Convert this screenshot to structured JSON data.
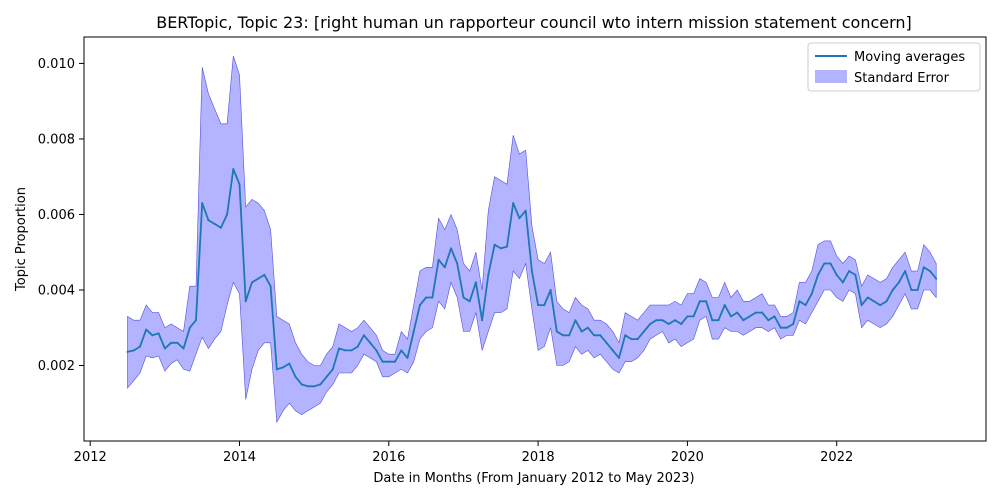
{
  "chart_data": {
    "type": "line",
    "title": "BERTopic, Topic 23: [right human un rapporteur council wto intern mission statement concern]",
    "xlabel": "Date in Months (From January 2012 to May 2023)",
    "ylabel": "Topic Proportion",
    "xlim": [
      "2011-12",
      "2024-01"
    ],
    "ylim": [
      0.0,
      0.0107
    ],
    "x_ticks": [
      "2012",
      "2014",
      "2016",
      "2018",
      "2020",
      "2022"
    ],
    "y_ticks": [
      "0.002",
      "0.004",
      "0.006",
      "0.008",
      "0.010"
    ],
    "legend_position": "top-right",
    "grid": false,
    "colors": {
      "line": "#1f77b4",
      "band": "#8080ff",
      "band_edge": "#5050dd"
    },
    "x": [
      "2012-07",
      "2012-08",
      "2012-09",
      "2012-10",
      "2012-11",
      "2012-12",
      "2013-01",
      "2013-02",
      "2013-03",
      "2013-04",
      "2013-05",
      "2013-06",
      "2013-07",
      "2013-08",
      "2013-09",
      "2013-10",
      "2013-11",
      "2013-12",
      "2014-01",
      "2014-02",
      "2014-03",
      "2014-04",
      "2014-05",
      "2014-06",
      "2014-07",
      "2014-08",
      "2014-09",
      "2014-10",
      "2014-11",
      "2014-12",
      "2015-01",
      "2015-02",
      "2015-03",
      "2015-04",
      "2015-05",
      "2015-06",
      "2015-07",
      "2015-08",
      "2015-09",
      "2015-10",
      "2015-11",
      "2015-12",
      "2016-01",
      "2016-02",
      "2016-03",
      "2016-04",
      "2016-05",
      "2016-06",
      "2016-07",
      "2016-08",
      "2016-09",
      "2016-10",
      "2016-11",
      "2016-12",
      "2017-01",
      "2017-02",
      "2017-03",
      "2017-04",
      "2017-05",
      "2017-06",
      "2017-07",
      "2017-08",
      "2017-09",
      "2017-10",
      "2017-11",
      "2017-12",
      "2018-01",
      "2018-02",
      "2018-03",
      "2018-04",
      "2018-05",
      "2018-06",
      "2018-07",
      "2018-08",
      "2018-09",
      "2018-10",
      "2018-11",
      "2018-12",
      "2019-01",
      "2019-02",
      "2019-03",
      "2019-04",
      "2019-05",
      "2019-06",
      "2019-07",
      "2019-08",
      "2019-09",
      "2019-10",
      "2019-11",
      "2019-12",
      "2020-01",
      "2020-02",
      "2020-03",
      "2020-04",
      "2020-05",
      "2020-06",
      "2020-07",
      "2020-08",
      "2020-09",
      "2020-10",
      "2020-11",
      "2020-12",
      "2021-01",
      "2021-02",
      "2021-03",
      "2021-04",
      "2021-05",
      "2021-06",
      "2021-07",
      "2021-08",
      "2021-09",
      "2021-10",
      "2021-11",
      "2021-12",
      "2022-01",
      "2022-02",
      "2022-03",
      "2022-04",
      "2022-05",
      "2022-06",
      "2022-07",
      "2022-08",
      "2022-09",
      "2022-10",
      "2022-11",
      "2022-12",
      "2023-01",
      "2023-02",
      "2023-03",
      "2023-04",
      "2023-05"
    ],
    "series": [
      {
        "name": "Moving averages",
        "values": [
          0.00236,
          0.0024,
          0.0025,
          0.00295,
          0.0028,
          0.00285,
          0.00245,
          0.0026,
          0.0026,
          0.00245,
          0.003,
          0.0032,
          0.0063,
          0.00585,
          0.00575,
          0.00565,
          0.006,
          0.0072,
          0.0068,
          0.0037,
          0.0042,
          0.0043,
          0.0044,
          0.0041,
          0.0019,
          0.00195,
          0.00205,
          0.0017,
          0.0015,
          0.00145,
          0.00145,
          0.0015,
          0.0017,
          0.0019,
          0.00245,
          0.0024,
          0.0024,
          0.0025,
          0.0028,
          0.0026,
          0.0024,
          0.0021,
          0.0021,
          0.0021,
          0.0024,
          0.0022,
          0.0029,
          0.0036,
          0.0038,
          0.0038,
          0.0048,
          0.0046,
          0.0051,
          0.0047,
          0.0038,
          0.0037,
          0.0042,
          0.0032,
          0.0044,
          0.0052,
          0.0051,
          0.00515,
          0.0063,
          0.0059,
          0.0061,
          0.0045,
          0.0036,
          0.0036,
          0.004,
          0.0029,
          0.0028,
          0.0028,
          0.0032,
          0.0029,
          0.003,
          0.0028,
          0.0028,
          0.0026,
          0.0024,
          0.0022,
          0.0028,
          0.0027,
          0.0027,
          0.0029,
          0.0031,
          0.0032,
          0.0032,
          0.0031,
          0.0032,
          0.0031,
          0.0033,
          0.0033,
          0.0037,
          0.0037,
          0.0032,
          0.0032,
          0.0036,
          0.0033,
          0.0034,
          0.0032,
          0.0033,
          0.0034,
          0.0034,
          0.0032,
          0.0033,
          0.003,
          0.003,
          0.0031,
          0.0037,
          0.0036,
          0.0039,
          0.0044,
          0.0047,
          0.0047,
          0.0044,
          0.0042,
          0.0045,
          0.0044,
          0.0036,
          0.0038,
          0.0037,
          0.0036,
          0.0037,
          0.004,
          0.0042,
          0.0045,
          0.004,
          0.004,
          0.0046,
          0.0045,
          0.0043
        ]
      },
      {
        "name": "Standard Error",
        "lower": [
          0.0014,
          0.0016,
          0.0018,
          0.00225,
          0.0022,
          0.00225,
          0.00185,
          0.00205,
          0.00215,
          0.0019,
          0.00185,
          0.0023,
          0.00275,
          0.00245,
          0.0027,
          0.0029,
          0.0036,
          0.0042,
          0.0039,
          0.0011,
          0.0019,
          0.0024,
          0.0026,
          0.0026,
          0.0005,
          0.0008,
          0.001,
          0.0008,
          0.0007,
          0.0008,
          0.0009,
          0.001,
          0.0013,
          0.0015,
          0.0018,
          0.0018,
          0.0018,
          0.002,
          0.0023,
          0.0022,
          0.0021,
          0.0017,
          0.0017,
          0.0018,
          0.0019,
          0.0018,
          0.0021,
          0.0027,
          0.0029,
          0.003,
          0.0037,
          0.0035,
          0.0042,
          0.0038,
          0.0029,
          0.0029,
          0.0034,
          0.0024,
          0.0029,
          0.0034,
          0.0034,
          0.0035,
          0.0045,
          0.0043,
          0.0047,
          0.0035,
          0.0024,
          0.0025,
          0.003,
          0.002,
          0.002,
          0.0021,
          0.0025,
          0.0023,
          0.0024,
          0.0022,
          0.0023,
          0.0021,
          0.0019,
          0.0018,
          0.0021,
          0.0021,
          0.0022,
          0.0024,
          0.0027,
          0.0028,
          0.0029,
          0.0026,
          0.0027,
          0.0025,
          0.0026,
          0.0027,
          0.0032,
          0.0033,
          0.0027,
          0.0027,
          0.003,
          0.0029,
          0.0029,
          0.0028,
          0.0029,
          0.003,
          0.003,
          0.0029,
          0.003,
          0.0027,
          0.0028,
          0.0028,
          0.0032,
          0.0031,
          0.0034,
          0.0037,
          0.004,
          0.004,
          0.0038,
          0.0037,
          0.004,
          0.0039,
          0.003,
          0.0032,
          0.0031,
          0.003,
          0.0031,
          0.0033,
          0.0036,
          0.0039,
          0.0035,
          0.0035,
          0.004,
          0.004,
          0.0038
        ],
        "upper": [
          0.0033,
          0.0032,
          0.0032,
          0.0036,
          0.0034,
          0.0034,
          0.003,
          0.0031,
          0.003,
          0.0029,
          0.0041,
          0.0041,
          0.0099,
          0.0092,
          0.0088,
          0.0084,
          0.0084,
          0.0102,
          0.0097,
          0.0062,
          0.0064,
          0.0063,
          0.0061,
          0.0056,
          0.0033,
          0.0032,
          0.0031,
          0.0026,
          0.0023,
          0.0021,
          0.002,
          0.002,
          0.0023,
          0.0025,
          0.0031,
          0.003,
          0.0029,
          0.003,
          0.0032,
          0.003,
          0.0028,
          0.0024,
          0.0023,
          0.0023,
          0.0029,
          0.0027,
          0.0036,
          0.0045,
          0.0046,
          0.0046,
          0.0059,
          0.0056,
          0.006,
          0.0056,
          0.0047,
          0.0045,
          0.005,
          0.004,
          0.0061,
          0.007,
          0.0069,
          0.0068,
          0.0081,
          0.0076,
          0.0077,
          0.0057,
          0.0048,
          0.0047,
          0.005,
          0.0037,
          0.0035,
          0.0034,
          0.0038,
          0.0036,
          0.0035,
          0.0032,
          0.0032,
          0.0031,
          0.0029,
          0.0026,
          0.0034,
          0.0033,
          0.0032,
          0.0034,
          0.0036,
          0.0036,
          0.0036,
          0.0036,
          0.0037,
          0.0036,
          0.0039,
          0.0039,
          0.0043,
          0.0042,
          0.0038,
          0.0038,
          0.0042,
          0.0038,
          0.004,
          0.0037,
          0.0037,
          0.0038,
          0.0039,
          0.0036,
          0.0036,
          0.0033,
          0.0033,
          0.0034,
          0.0042,
          0.0042,
          0.0045,
          0.0052,
          0.0053,
          0.0053,
          0.0049,
          0.0047,
          0.0049,
          0.0048,
          0.0041,
          0.0044,
          0.0043,
          0.0042,
          0.0043,
          0.0046,
          0.0048,
          0.005,
          0.0045,
          0.0045,
          0.0052,
          0.005,
          0.0047
        ]
      }
    ]
  }
}
